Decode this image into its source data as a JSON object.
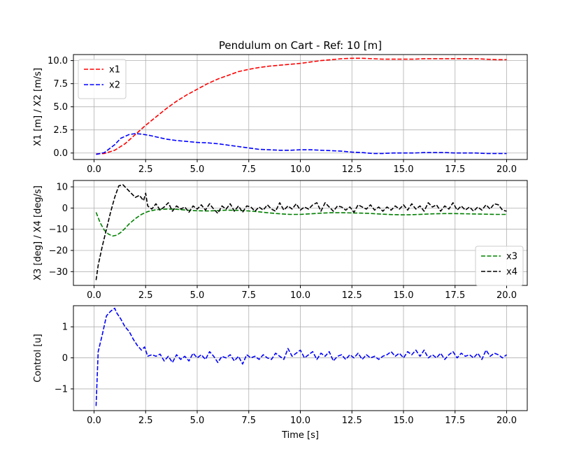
{
  "chart_data": [
    {
      "type": "line",
      "title": "Pendulum on Cart - Ref: 10 [m]",
      "xlabel": "",
      "ylabel": "X1 [m] / X2 [m/s]",
      "xlim": [
        -1.0,
        21.0
      ],
      "ylim": [
        -0.7,
        10.65
      ],
      "xticks": [
        0.0,
        2.5,
        5.0,
        7.5,
        10.0,
        12.5,
        15.0,
        17.5,
        20.0
      ],
      "xtick_labels": [
        "0.0",
        "2.5",
        "5.0",
        "7.5",
        "10.0",
        "12.5",
        "15.0",
        "17.5",
        "20.0"
      ],
      "yticks": [
        0.0,
        2.5,
        5.0,
        7.5,
        10.0
      ],
      "ytick_labels": [
        "0.0",
        "2.5",
        "5.0",
        "7.5",
        "10.0"
      ],
      "grid": true,
      "legend": "upper left",
      "series": [
        {
          "name": "x1",
          "color": "#ff0000",
          "style": "dashed",
          "x": [
            0.1,
            0.5,
            1.0,
            1.5,
            2.0,
            2.5,
            3.0,
            3.5,
            4.0,
            4.5,
            5.0,
            5.5,
            6.0,
            6.5,
            7.0,
            7.5,
            8.0,
            8.5,
            9.0,
            9.5,
            10.0,
            10.5,
            11.0,
            11.5,
            12.0,
            12.5,
            13.0,
            13.5,
            14.0,
            14.5,
            15.0,
            15.5,
            16.0,
            16.5,
            17.0,
            17.5,
            18.0,
            18.5,
            19.0,
            19.5,
            20.0
          ],
          "y": [
            -0.1,
            -0.05,
            0.3,
            1.0,
            2.0,
            3.0,
            3.9,
            4.8,
            5.6,
            6.3,
            6.9,
            7.5,
            8.0,
            8.4,
            8.8,
            9.05,
            9.25,
            9.4,
            9.5,
            9.6,
            9.7,
            9.85,
            10.0,
            10.1,
            10.2,
            10.25,
            10.25,
            10.2,
            10.15,
            10.15,
            10.15,
            10.15,
            10.2,
            10.2,
            10.2,
            10.2,
            10.2,
            10.2,
            10.15,
            10.1,
            10.1
          ]
        },
        {
          "name": "x2",
          "color": "#0000ff",
          "style": "dashed",
          "x": [
            0.1,
            0.5,
            1.0,
            1.3,
            1.7,
            2.0,
            2.3,
            2.7,
            3.0,
            3.5,
            4.0,
            4.5,
            5.0,
            5.5,
            6.0,
            6.5,
            7.0,
            7.5,
            8.0,
            8.5,
            9.0,
            9.5,
            10.0,
            10.5,
            11.0,
            11.5,
            12.0,
            12.5,
            13.0,
            13.5,
            14.0,
            14.5,
            15.0,
            15.5,
            16.0,
            16.5,
            17.0,
            17.5,
            18.0,
            18.5,
            19.0,
            19.5,
            20.0
          ],
          "y": [
            -0.15,
            0.05,
            0.9,
            1.6,
            2.0,
            2.1,
            2.05,
            1.9,
            1.75,
            1.5,
            1.35,
            1.25,
            1.15,
            1.1,
            1.0,
            0.85,
            0.7,
            0.55,
            0.4,
            0.35,
            0.3,
            0.3,
            0.35,
            0.35,
            0.3,
            0.25,
            0.2,
            0.1,
            0.05,
            -0.05,
            -0.05,
            0.0,
            0.0,
            0.0,
            0.05,
            0.05,
            0.05,
            0.0,
            0.0,
            0.0,
            -0.05,
            -0.05,
            -0.05
          ]
        }
      ]
    },
    {
      "type": "line",
      "title": "",
      "xlabel": "",
      "ylabel": "X3 [deg] / X4 [deg/s]",
      "xlim": [
        -1.0,
        21.0
      ],
      "ylim": [
        -36.5,
        13.0
      ],
      "xticks": [
        0.0,
        2.5,
        5.0,
        7.5,
        10.0,
        12.5,
        15.0,
        17.5,
        20.0
      ],
      "xtick_labels": [
        "0.0",
        "2.5",
        "5.0",
        "7.5",
        "10.0",
        "12.5",
        "15.0",
        "17.5",
        "20.0"
      ],
      "yticks": [
        -30,
        -20,
        -10,
        0,
        10
      ],
      "ytick_labels": [
        "−30",
        "−20",
        "−10",
        "0",
        "10"
      ],
      "grid": true,
      "legend": "lower right",
      "series": [
        {
          "name": "x3",
          "color": "#008000",
          "style": "dashed",
          "x": [
            0.1,
            0.3,
            0.5,
            0.7,
            0.9,
            1.1,
            1.3,
            1.5,
            1.7,
            2.0,
            2.3,
            2.6,
            3.0,
            3.5,
            4.0,
            4.5,
            5.0,
            5.5,
            6.0,
            6.5,
            7.0,
            7.5,
            8.0,
            8.5,
            9.0,
            9.5,
            10.0,
            10.5,
            11.0,
            11.5,
            12.0,
            12.5,
            13.0,
            13.5,
            14.0,
            14.5,
            15.0,
            15.5,
            16.0,
            16.5,
            17.0,
            17.5,
            18.0,
            18.5,
            19.0,
            19.5,
            20.0
          ],
          "y": [
            -2.0,
            -7.0,
            -10.5,
            -12.3,
            -13.2,
            -12.8,
            -11.5,
            -9.6,
            -7.5,
            -5.0,
            -3.0,
            -1.7,
            -0.8,
            -0.5,
            -0.6,
            -1.0,
            -1.3,
            -1.4,
            -1.2,
            -1.0,
            -1.1,
            -1.4,
            -1.8,
            -2.3,
            -2.7,
            -3.0,
            -3.0,
            -2.7,
            -2.4,
            -2.2,
            -2.2,
            -2.3,
            -2.4,
            -2.6,
            -2.9,
            -3.1,
            -3.2,
            -3.1,
            -2.9,
            -2.7,
            -2.6,
            -2.6,
            -2.7,
            -2.8,
            -2.9,
            -3.0,
            -3.0
          ]
        },
        {
          "name": "x4",
          "color": "#000000",
          "style": "dashed",
          "x": [
            0.1,
            0.2,
            0.4,
            0.6,
            0.8,
            1.0,
            1.2,
            1.4,
            1.6,
            1.8,
            2.0,
            2.2,
            2.4,
            2.5,
            2.6,
            2.8,
            3.0,
            3.2,
            3.4,
            3.6,
            3.8,
            4.0,
            4.2,
            4.4,
            4.6,
            4.8,
            5.0,
            5.2,
            5.4,
            5.6,
            5.8,
            6.0,
            6.2,
            6.4,
            6.6,
            6.8,
            7.0,
            7.2,
            7.4,
            7.6,
            7.8,
            8.0,
            8.2,
            8.4,
            8.6,
            8.8,
            9.0,
            9.2,
            9.4,
            9.6,
            9.8,
            10.0,
            10.2,
            10.4,
            10.6,
            10.8,
            11.0,
            11.2,
            11.4,
            11.6,
            11.8,
            12.0,
            12.2,
            12.4,
            12.6,
            12.8,
            13.0,
            13.2,
            13.4,
            13.6,
            13.8,
            14.0,
            14.2,
            14.4,
            14.6,
            14.8,
            15.0,
            15.2,
            15.4,
            15.6,
            15.8,
            16.0,
            16.2,
            16.4,
            16.6,
            16.8,
            17.0,
            17.2,
            17.4,
            17.6,
            17.8,
            18.0,
            18.2,
            18.4,
            18.6,
            18.8,
            19.0,
            19.2,
            19.4,
            19.6,
            19.8,
            20.0
          ],
          "y": [
            -34.0,
            -27.0,
            -18.0,
            -10.0,
            -2.0,
            5.0,
            10.5,
            11.0,
            9.0,
            7.0,
            5.0,
            6.0,
            3.5,
            7.0,
            1.0,
            -0.5,
            2.0,
            -1.0,
            0.5,
            2.5,
            -1.5,
            1.0,
            -0.5,
            0.5,
            -2.0,
            1.0,
            -0.5,
            1.5,
            -1.0,
            2.0,
            -0.5,
            -2.5,
            1.0,
            -0.5,
            2.0,
            -1.5,
            1.0,
            -2.0,
            1.0,
            0.5,
            -1.5,
            0.5,
            -1.0,
            1.5,
            -0.5,
            -1.5,
            2.5,
            -1.0,
            1.0,
            -0.5,
            2.0,
            -1.0,
            0.5,
            -0.5,
            1.5,
            2.5,
            -1.5,
            2.5,
            0.5,
            -1.5,
            1.0,
            0.5,
            -1.0,
            0.5,
            -2.0,
            1.5,
            0.5,
            -0.5,
            1.5,
            -1.0,
            0.5,
            -1.5,
            0.5,
            -1.0,
            1.0,
            -0.5,
            1.5,
            -1.0,
            2.0,
            -0.5,
            1.0,
            -1.5,
            2.5,
            0.5,
            1.5,
            -1.5,
            1.0,
            -0.5,
            2.5,
            -1.0,
            1.0,
            -1.0,
            0.5,
            -1.5,
            0.5,
            -1.0,
            1.5,
            -0.5,
            2.0,
            1.5,
            -1.0,
            -1.5
          ]
        }
      ]
    },
    {
      "type": "line",
      "title": "",
      "xlabel": "Time [s]",
      "ylabel": "Control [u]",
      "xlim": [
        -1.0,
        21.0
      ],
      "ylim": [
        -1.7,
        1.68
      ],
      "xticks": [
        0.0,
        2.5,
        5.0,
        7.5,
        10.0,
        12.5,
        15.0,
        17.5,
        20.0
      ],
      "xtick_labels": [
        "0.0",
        "2.5",
        "5.0",
        "7.5",
        "10.0",
        "12.5",
        "15.0",
        "17.5",
        "20.0"
      ],
      "yticks": [
        -1,
        0,
        1
      ],
      "ytick_labels": [
        "−1",
        "0",
        "1"
      ],
      "grid": true,
      "legend": "none",
      "series": [
        {
          "name": "",
          "color": "#0000ff",
          "style": "dashed",
          "x": [
            0.1,
            0.2,
            0.4,
            0.6,
            0.8,
            1.0,
            1.1,
            1.3,
            1.5,
            1.7,
            1.9,
            2.1,
            2.3,
            2.45,
            2.6,
            2.8,
            3.0,
            3.2,
            3.4,
            3.6,
            3.8,
            4.0,
            4.2,
            4.4,
            4.6,
            4.8,
            5.0,
            5.2,
            5.4,
            5.6,
            5.8,
            6.0,
            6.2,
            6.4,
            6.6,
            6.8,
            7.0,
            7.2,
            7.4,
            7.6,
            7.8,
            8.0,
            8.2,
            8.4,
            8.6,
            8.8,
            9.0,
            9.2,
            9.4,
            9.6,
            9.8,
            10.0,
            10.2,
            10.4,
            10.6,
            10.8,
            11.0,
            11.2,
            11.4,
            11.6,
            11.8,
            12.0,
            12.2,
            12.4,
            12.6,
            12.8,
            13.0,
            13.2,
            13.4,
            13.6,
            13.8,
            14.0,
            14.2,
            14.4,
            14.6,
            14.8,
            15.0,
            15.2,
            15.4,
            15.6,
            15.8,
            16.0,
            16.2,
            16.4,
            16.6,
            16.8,
            17.0,
            17.2,
            17.4,
            17.6,
            17.8,
            18.0,
            18.2,
            18.4,
            18.6,
            18.8,
            19.0,
            19.2,
            19.4,
            19.6,
            19.8,
            20.0
          ],
          "y": [
            -1.55,
            0.2,
            0.75,
            1.35,
            1.5,
            1.6,
            1.45,
            1.25,
            1.0,
            0.85,
            0.6,
            0.4,
            0.25,
            0.35,
            0.05,
            0.1,
            0.05,
            0.12,
            -0.1,
            0.05,
            -0.15,
            0.1,
            -0.05,
            0.05,
            -0.1,
            0.15,
            0.0,
            0.1,
            -0.05,
            0.2,
            0.05,
            -0.15,
            0.05,
            0.0,
            0.1,
            -0.1,
            0.05,
            -0.2,
            0.1,
            0.0,
            0.05,
            -0.05,
            0.1,
            0.0,
            -0.05,
            0.15,
            0.05,
            -0.05,
            0.3,
            0.05,
            0.15,
            0.25,
            0.0,
            0.1,
            0.2,
            -0.05,
            0.15,
            0.05,
            0.2,
            -0.1,
            0.05,
            0.1,
            -0.05,
            0.1,
            0.0,
            0.15,
            -0.05,
            0.1,
            0.0,
            0.05,
            -0.05,
            0.05,
            0.1,
            0.2,
            0.05,
            0.15,
            0.0,
            0.2,
            0.1,
            0.25,
            0.05,
            0.25,
            0.0,
            0.1,
            0.0,
            0.15,
            -0.05,
            0.1,
            0.2,
            0.0,
            0.15,
            0.05,
            0.1,
            0.0,
            0.15,
            -0.05,
            0.25,
            0.05,
            0.15,
            0.1,
            0.0,
            0.1
          ]
        }
      ]
    }
  ]
}
